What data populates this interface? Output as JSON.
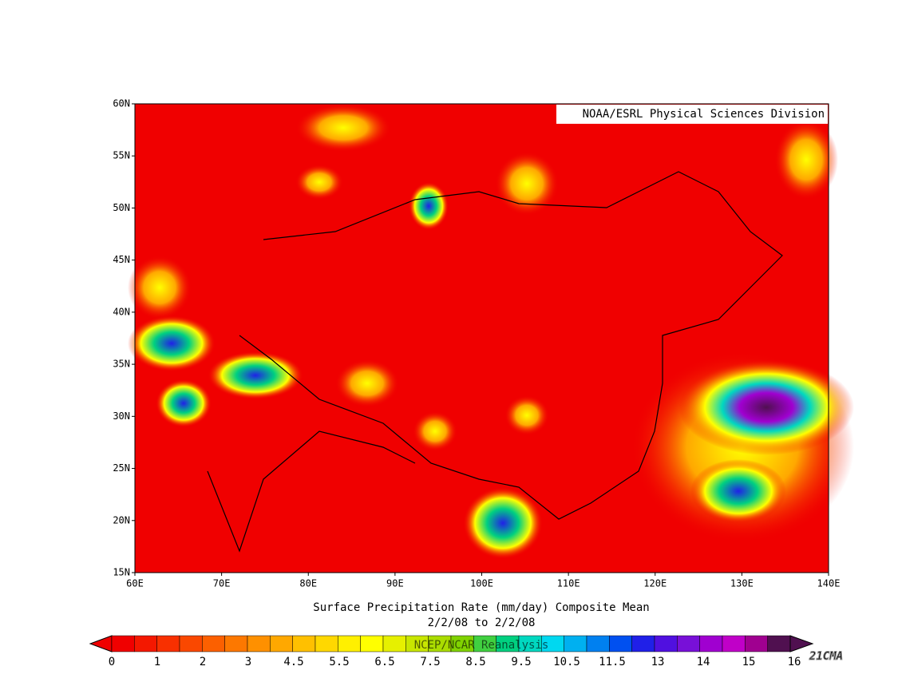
{
  "map": {
    "credit": "NOAA/ESRL Physical Sciences Division",
    "lat_labels": [
      "15N",
      "20N",
      "25N",
      "30N",
      "35N",
      "40N",
      "45N",
      "50N",
      "55N",
      "60N"
    ],
    "lon_labels": [
      "60E",
      "70E",
      "80E",
      "90E",
      "100E",
      "110E",
      "120E",
      "130E",
      "140E"
    ],
    "title": "Surface Precipitation Rate (mm/day) Composite Mean",
    "subtitle": "2/2/08  to 2/2/08",
    "source": "NCEP/NCAR Reanalysis",
    "watermark": "21CMA"
  },
  "colorbar": {
    "labels": [
      0,
      1,
      2,
      3,
      4.5,
      5.5,
      6.5,
      7.5,
      8.5,
      9.5,
      10.5,
      11.5,
      13,
      14,
      15,
      16
    ],
    "colors": [
      "#f00000",
      "#f41800",
      "#f83000",
      "#fa4800",
      "#fc6000",
      "#fd7800",
      "#fe9000",
      "#ffa800",
      "#ffc000",
      "#ffd800",
      "#fff000",
      "#ffff00",
      "#e6f000",
      "#c8e600",
      "#aadc00",
      "#80d200",
      "#40d040",
      "#00d080",
      "#00d8c0",
      "#00d8f0",
      "#00b0f0",
      "#0080f0",
      "#0050f0",
      "#2020e8",
      "#5010e0",
      "#7810d8",
      "#a000d0",
      "#c000c8",
      "#a00090",
      "#501050"
    ]
  }
}
